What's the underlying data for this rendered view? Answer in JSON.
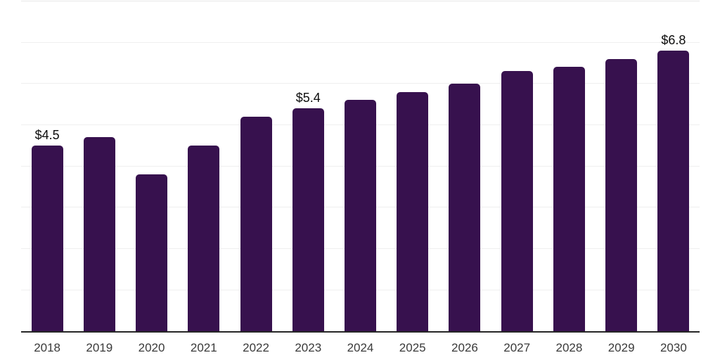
{
  "chart_data": {
    "type": "bar",
    "title": "",
    "xlabel": "",
    "ylabel": "",
    "categories": [
      "2018",
      "2019",
      "2020",
      "2021",
      "2022",
      "2023",
      "2024",
      "2025",
      "2026",
      "2027",
      "2028",
      "2029",
      "2030"
    ],
    "values": [
      4.5,
      4.7,
      3.8,
      4.5,
      5.2,
      5.4,
      5.6,
      5.8,
      6.0,
      6.3,
      6.4,
      6.6,
      6.8
    ],
    "data_labels": [
      "$4.5",
      null,
      null,
      null,
      null,
      "$5.4",
      null,
      null,
      null,
      null,
      null,
      null,
      "$6.8"
    ],
    "value_prefix": "$",
    "ylim": [
      0,
      8
    ],
    "grid_interval": 1,
    "grid": "horizontal",
    "legend": "none",
    "y_axis_labels": "none",
    "bar_color": "#37114E",
    "gridline_color": "#efefef",
    "top_gridline_color": "#e7e7e7",
    "axis_line_color": "#262626",
    "tick_label_color": "#3a3a3a",
    "data_label_color": "#0d0d0d",
    "background_color": "#ffffff"
  }
}
